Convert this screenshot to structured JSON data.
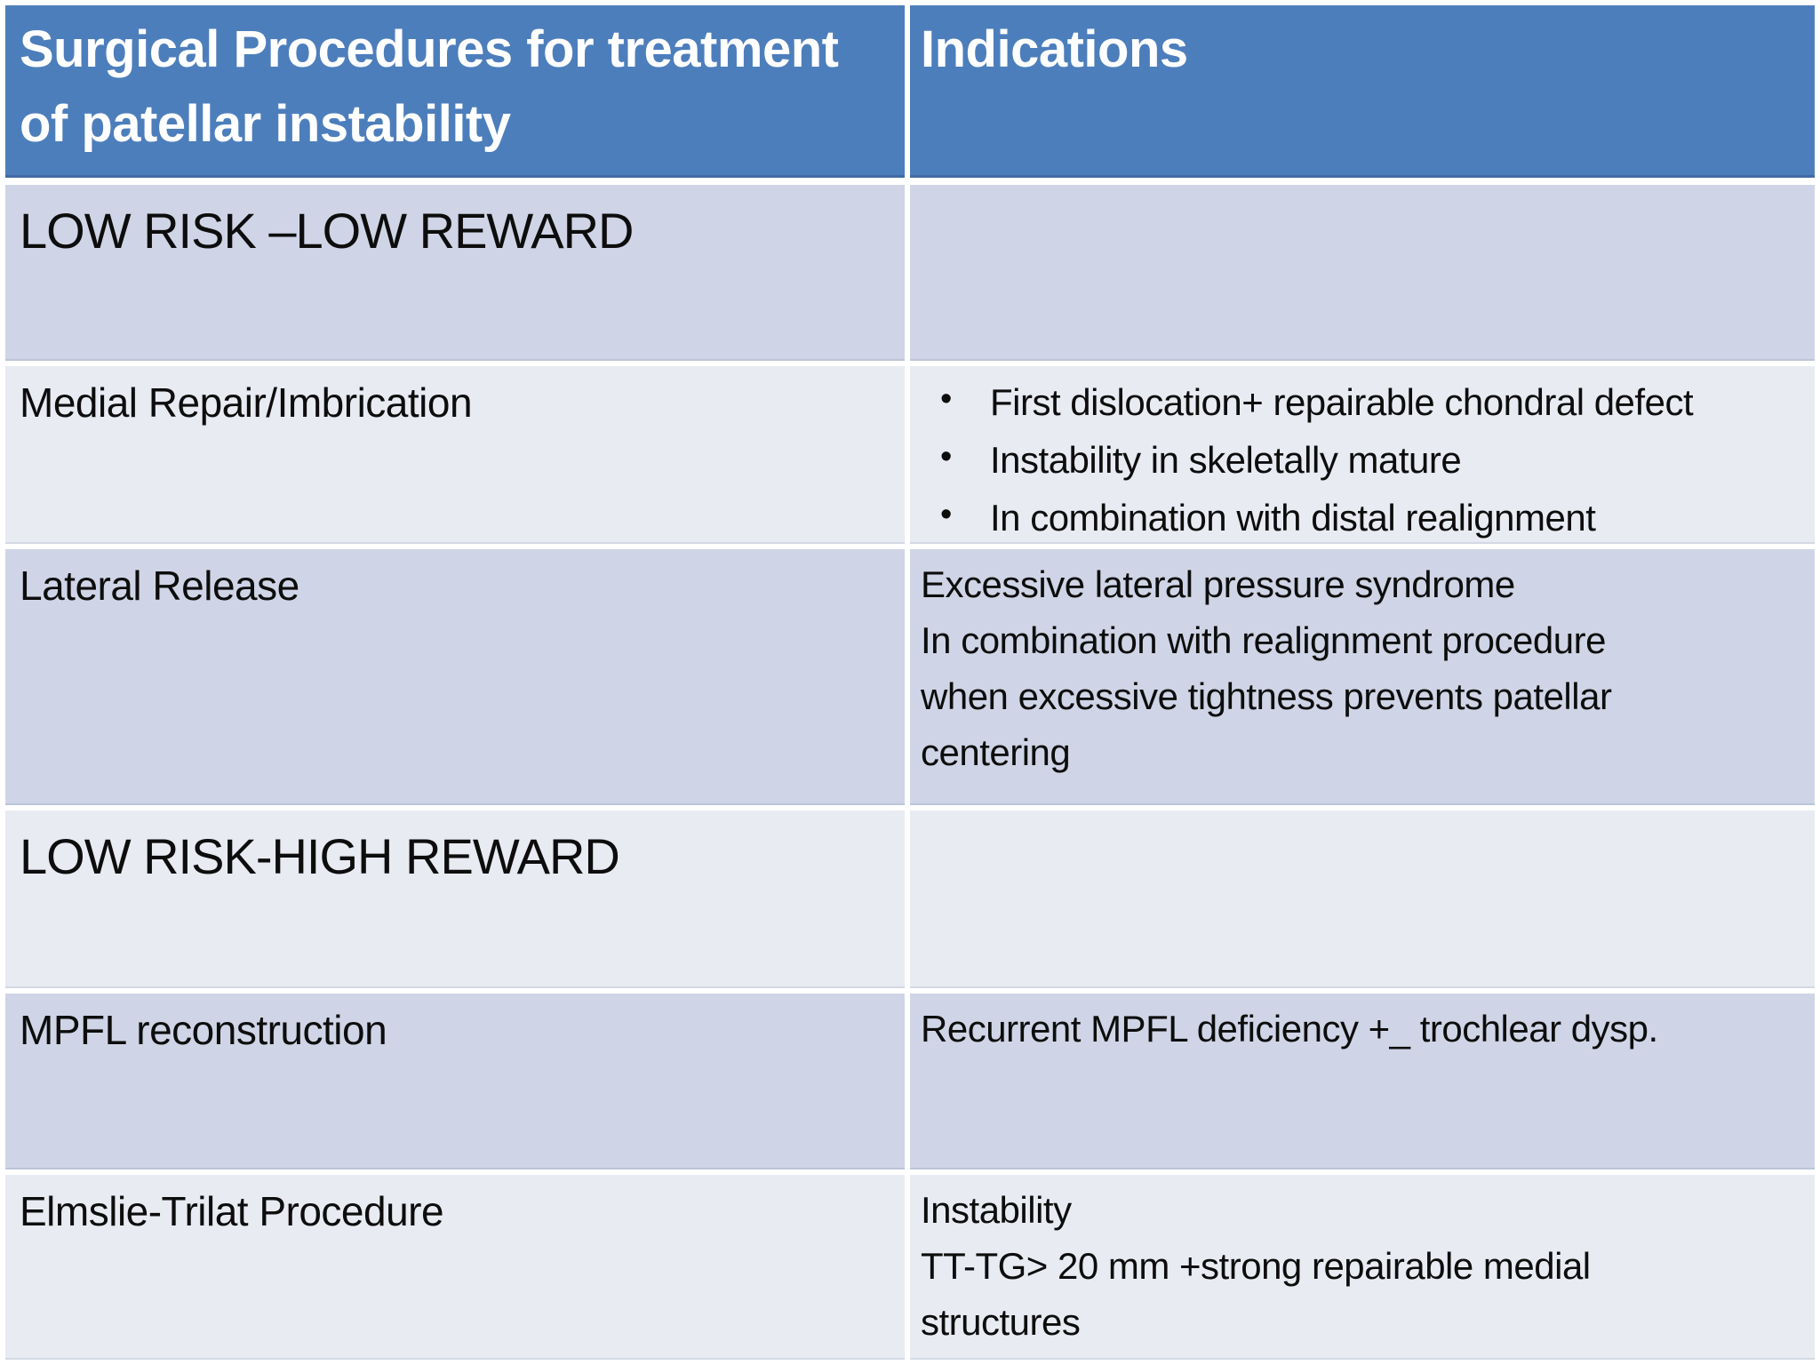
{
  "title": "Surgical Procedures for treatment of patellar instability",
  "colors": {
    "header_bg": "#4d7ebc",
    "header_text": "#ffffff",
    "band_dark": "#cfd5e6",
    "band_light": "#e9ebf3",
    "gap": "#ffffff",
    "body_text": "#0d0d0d"
  },
  "table": {
    "header": {
      "procedures_lines": [
        "Surgical Procedures for treatment",
        "of patellar instability"
      ],
      "indications": "Indications"
    },
    "rows": [
      {
        "kind": "section",
        "procedure": "LOW RISK –LOW REWARD",
        "bullets": [],
        "lines": []
      },
      {
        "kind": "item",
        "procedure": "Medial Repair/Imbrication",
        "bullets": [
          "First dislocation+ repairable chondral defect",
          "Instability in skeletally mature",
          "In combination with distal realignment"
        ],
        "lines": []
      },
      {
        "kind": "item",
        "procedure": "Lateral Release",
        "bullets": [],
        "lines": [
          "Excessive lateral pressure syndrome",
          "In combination with realignment procedure",
          "when excessive tightness prevents patellar",
          "centering"
        ]
      },
      {
        "kind": "section",
        "procedure": "LOW RISK-HIGH REWARD",
        "bullets": [],
        "lines": []
      },
      {
        "kind": "item",
        "procedure": "MPFL reconstruction",
        "bullets": [],
        "lines": [
          "Recurrent MPFL deficiency +_ trochlear dysp."
        ]
      },
      {
        "kind": "item",
        "procedure": "Elmslie-Trilat Procedure",
        "bullets": [],
        "lines": [
          "Instability",
          "TT-TG> 20 mm +strong repairable medial",
          "structures"
        ]
      }
    ]
  }
}
